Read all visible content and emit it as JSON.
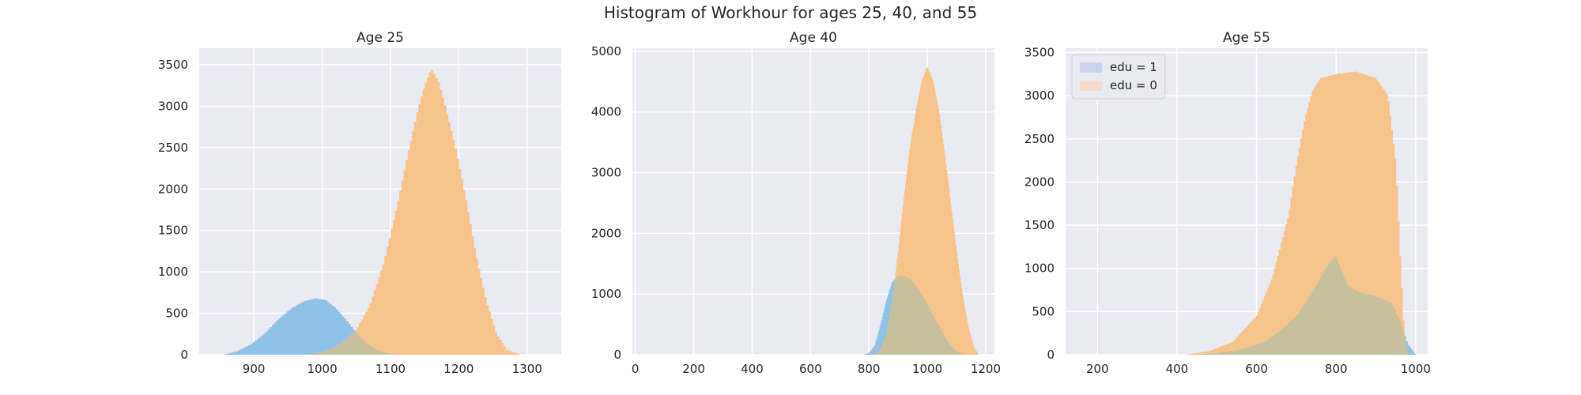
{
  "figure": {
    "suptitle": "Histogram of Workhour for ages 25, 40, and 55"
  },
  "colors": {
    "background": "#eaeaf2",
    "grid": "#ffffff",
    "edu1": "#8fc2e6",
    "edu0": "#f6c48b",
    "overlap": "#c7c09c",
    "legend_edu1": "#c9d3ea",
    "legend_edu0": "#f3dbd0"
  },
  "chart_data": [
    {
      "type": "histogram",
      "title": "Age 25",
      "xlabel": "",
      "ylabel": "",
      "xlim": [
        820,
        1350
      ],
      "ylim": [
        0,
        3700
      ],
      "xticks": [
        900,
        1000,
        1100,
        1200,
        1300
      ],
      "yticks": [
        0,
        500,
        1000,
        1500,
        2000,
        2500,
        3000,
        3500
      ],
      "grid": true,
      "series": [
        {
          "name": "edu = 1",
          "color_key": "edu1",
          "x": [
            855,
            875,
            895,
            915,
            935,
            955,
            975,
            990,
            1005,
            1020,
            1035,
            1050,
            1065,
            1080,
            1095,
            1110
          ],
          "y": [
            0,
            40,
            120,
            250,
            420,
            560,
            650,
            680,
            660,
            560,
            420,
            260,
            140,
            60,
            20,
            0
          ]
        },
        {
          "name": "edu = 0",
          "color_key": "edu0",
          "x": [
            975,
            1000,
            1025,
            1050,
            1070,
            1090,
            1110,
            1125,
            1140,
            1150,
            1160,
            1170,
            1180,
            1195,
            1210,
            1225,
            1240,
            1255,
            1270,
            1290
          ],
          "y": [
            0,
            30,
            120,
            300,
            600,
            1100,
            1800,
            2400,
            2950,
            3250,
            3450,
            3300,
            3000,
            2500,
            1900,
            1200,
            650,
            250,
            60,
            0
          ]
        }
      ]
    },
    {
      "type": "histogram",
      "title": "Age 40",
      "xlabel": "",
      "ylabel": "",
      "xlim": [
        -10,
        1230
      ],
      "ylim": [
        0,
        5050
      ],
      "xticks": [
        0,
        200,
        400,
        600,
        800,
        1000,
        1200
      ],
      "yticks": [
        0,
        1000,
        2000,
        3000,
        4000,
        5000
      ],
      "grid": true,
      "series": [
        {
          "name": "edu = 1",
          "color_key": "edu1",
          "x": [
            780,
            800,
            820,
            840,
            860,
            880,
            900,
            920,
            940,
            960,
            980,
            1000,
            1020,
            1040,
            1060,
            1080,
            1100,
            1120,
            1140
          ],
          "y": [
            0,
            30,
            150,
            500,
            900,
            1200,
            1300,
            1300,
            1250,
            1150,
            1000,
            850,
            650,
            480,
            300,
            160,
            60,
            15,
            0
          ]
        },
        {
          "name": "edu = 0",
          "color_key": "edu0",
          "x": [
            820,
            840,
            860,
            880,
            900,
            920,
            940,
            960,
            980,
            1000,
            1020,
            1040,
            1060,
            1080,
            1100,
            1120,
            1140,
            1160,
            1175
          ],
          "y": [
            0,
            100,
            350,
            900,
            1700,
            2600,
            3400,
            4000,
            4500,
            4750,
            4500,
            4000,
            3300,
            2500,
            1700,
            1000,
            450,
            120,
            0
          ]
        }
      ]
    },
    {
      "type": "histogram",
      "title": "Age 55",
      "xlabel": "",
      "ylabel": "",
      "xlim": [
        120,
        1030
      ],
      "ylim": [
        0,
        3550
      ],
      "xticks": [
        200,
        400,
        600,
        800,
        1000
      ],
      "yticks": [
        0,
        500,
        1000,
        1500,
        2000,
        2500,
        3000,
        3500
      ],
      "grid": true,
      "legend": {
        "placement": "upper left",
        "entries": [
          {
            "label": "edu = 1",
            "color_key": "legend_edu1"
          },
          {
            "label": "edu = 0",
            "color_key": "legend_edu0"
          }
        ]
      },
      "series": [
        {
          "name": "edu = 1",
          "color_key": "edu1",
          "x": [
            440,
            500,
            560,
            620,
            660,
            700,
            730,
            760,
            780,
            800,
            815,
            830,
            860,
            900,
            940,
            960,
            980,
            1000
          ],
          "y": [
            0,
            20,
            60,
            150,
            280,
            450,
            650,
            880,
            1050,
            1150,
            950,
            800,
            720,
            680,
            600,
            400,
            120,
            0
          ]
        },
        {
          "name": "edu = 0",
          "color_key": "edu0",
          "x": [
            420,
            480,
            540,
            600,
            640,
            680,
            700,
            720,
            740,
            760,
            800,
            850,
            900,
            930,
            950,
            960,
            970,
            980
          ],
          "y": [
            0,
            40,
            150,
            450,
            900,
            1600,
            2200,
            2700,
            3050,
            3200,
            3250,
            3280,
            3200,
            3000,
            2200,
            1200,
            300,
            0
          ]
        }
      ]
    }
  ]
}
